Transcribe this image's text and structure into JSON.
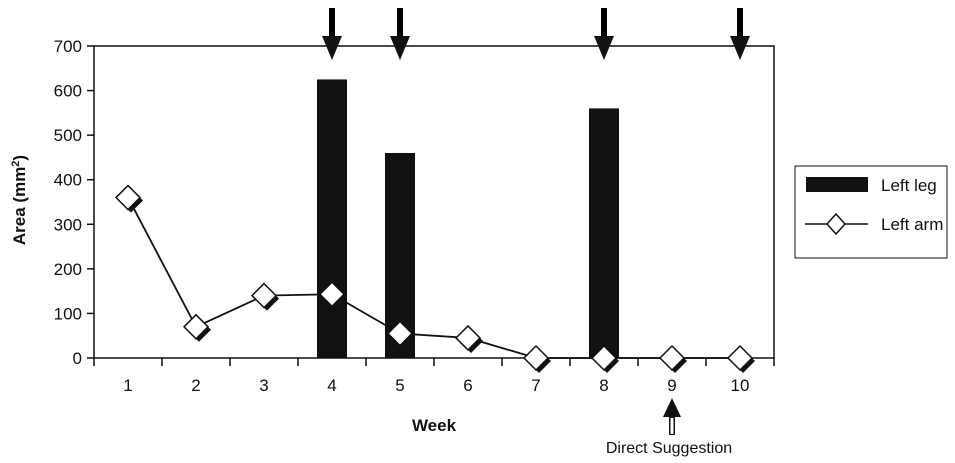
{
  "chart_data": {
    "type": "bar",
    "x": [
      1,
      2,
      3,
      4,
      5,
      6,
      7,
      8,
      9,
      10
    ],
    "xlabel": "Week",
    "ylabel": "Area (mm²)",
    "ylabel_parts": {
      "base": "Area (mm",
      "sup": "2",
      "end": ")"
    },
    "ylim": [
      0,
      700
    ],
    "yticks": [
      0,
      100,
      200,
      300,
      400,
      500,
      600,
      700
    ],
    "grid": false,
    "legend_position": "right",
    "series": [
      {
        "name": "Left leg",
        "type": "bar",
        "color": "#111111",
        "values": [
          0,
          0,
          0,
          625,
          460,
          0,
          0,
          560,
          0,
          0
        ]
      },
      {
        "name": "Left arm",
        "type": "line",
        "marker": "diamond",
        "color": "#111111",
        "values": [
          360,
          70,
          140,
          143,
          55,
          45,
          0,
          0,
          0,
          0
        ]
      }
    ],
    "annotations": {
      "top_arrows_at_week": [
        4,
        5,
        8,
        10
      ],
      "bottom_arrow": {
        "week": 9,
        "text": "Direct Suggestion"
      }
    }
  }
}
